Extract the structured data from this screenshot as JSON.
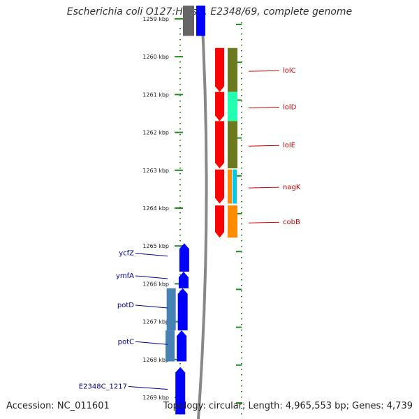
{
  "title": "Escherichia coli O127:H6 str. E2348/69, complete genome",
  "footer": {
    "accession": "Accession: NC_011601",
    "summary": "Topology: circular; Length: 4,965,553 bp; Genes: 4,739"
  },
  "colors": {
    "forward_label": "#cc0000",
    "reverse_label": "#000099",
    "forward_gene": "#ff0000",
    "reverse_gene": "#0000ff",
    "dot_track": "#228b22",
    "backbone": "#888888"
  },
  "ticks": [
    {
      "label": "1259 kbp",
      "kbp": 1259
    },
    {
      "label": "1260 kbp",
      "kbp": 1260
    },
    {
      "label": "1261 kbp",
      "kbp": 1261
    },
    {
      "label": "1262 kbp",
      "kbp": 1262
    },
    {
      "label": "1263 kbp",
      "kbp": 1263
    },
    {
      "label": "1264 kbp",
      "kbp": 1264
    },
    {
      "label": "1265 kbp",
      "kbp": 1265
    },
    {
      "label": "1266 kbp",
      "kbp": 1266
    },
    {
      "label": "1267 kbp",
      "kbp": 1267
    },
    {
      "label": "1268 kbp",
      "kbp": 1268
    },
    {
      "label": "1269 kbp",
      "kbp": 1269
    }
  ],
  "genes_forward": [
    {
      "name": "lolC",
      "start": 1259.77,
      "end": 1260.93,
      "cat_color": "#6b7a1e"
    },
    {
      "name": "lolD",
      "start": 1260.93,
      "end": 1261.7,
      "cat_color": "#22ffb0"
    },
    {
      "name": "lolE",
      "start": 1261.7,
      "end": 1262.95,
      "cat_color": "#6b7a1e"
    },
    {
      "name": "nagK",
      "start": 1262.98,
      "end": 1263.88,
      "cat_color": "#00c8e6"
    },
    {
      "name": "cobB",
      "start": 1263.93,
      "end": 1264.78,
      "cat_color": "#ff8c00"
    }
  ],
  "genes_reverse": [
    {
      "name": "ycfZ",
      "start": 1264.93,
      "end": 1265.68,
      "cat_color": ""
    },
    {
      "name": "ymfA",
      "start": 1265.68,
      "end": 1266.12,
      "cat_color": ""
    },
    {
      "name": "potD",
      "start": 1266.12,
      "end": 1267.23,
      "cat_color": "#4682b4"
    },
    {
      "name": "potC",
      "start": 1267.23,
      "end": 1268.05,
      "cat_color": "#4682b4"
    },
    {
      "name": "E2348C_1217",
      "start": 1268.2,
      "end": 1269.45,
      "cat_color": ""
    }
  ],
  "top_feature": {
    "start": 1258.4,
    "end": 1259.45
  }
}
